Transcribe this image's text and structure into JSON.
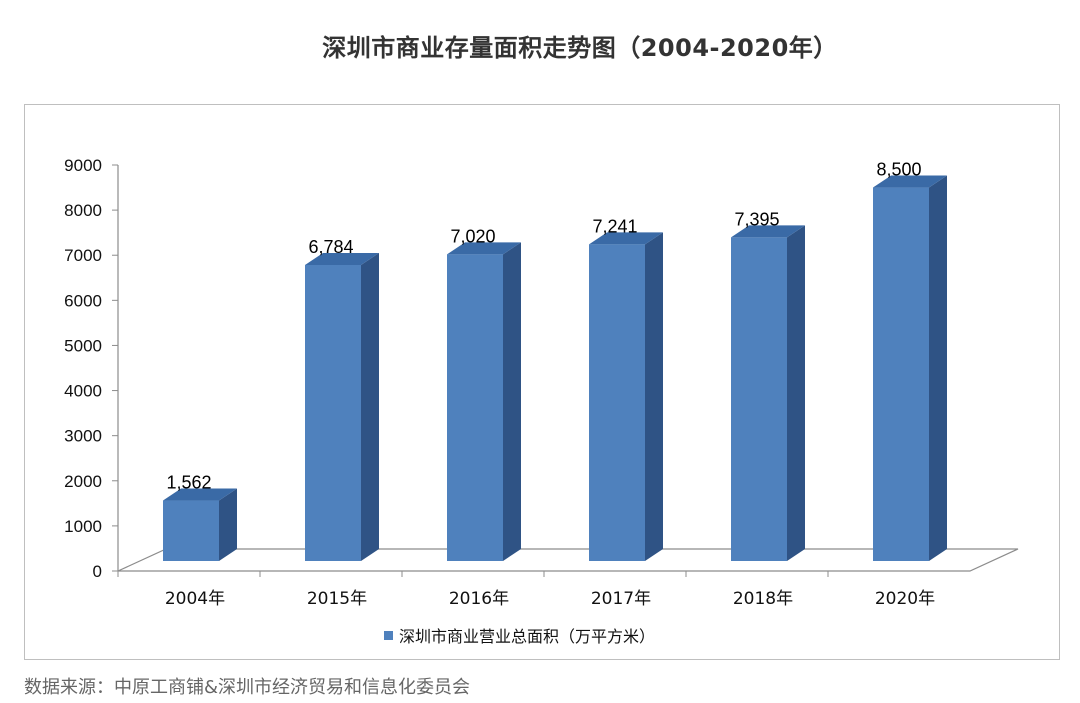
{
  "title": "深圳市商业存量面积走势图（2004-2020年）",
  "source": "数据来源：中原工商铺&深圳市经济贸易和信息化委员会",
  "chart_data": {
    "type": "bar",
    "title": "深圳市商业存量面积走势图（2004-2020年）",
    "categories": [
      "2004年",
      "2015年",
      "2016年",
      "2017年",
      "2018年",
      "2020年"
    ],
    "series": [
      {
        "name": "深圳市商业营业总面积（万平方米）",
        "values": [
          1562,
          6784,
          7020,
          7241,
          7395,
          8500
        ],
        "labels": [
          "1,562",
          "6,784",
          "7,020",
          "7,241",
          "7,395",
          "8,500"
        ]
      }
    ],
    "y_ticks": [
      "0",
      "1000",
      "2000",
      "3000",
      "4000",
      "5000",
      "6000",
      "7000",
      "8000",
      "9000"
    ],
    "ylim": [
      0,
      9000
    ],
    "legend": "bottom",
    "grid": false,
    "style": "3d-column",
    "colors": {
      "front": "#4f81bd",
      "side": "#2f5385",
      "top": "#3a6aa6",
      "floor": "#8c8c8c"
    }
  }
}
